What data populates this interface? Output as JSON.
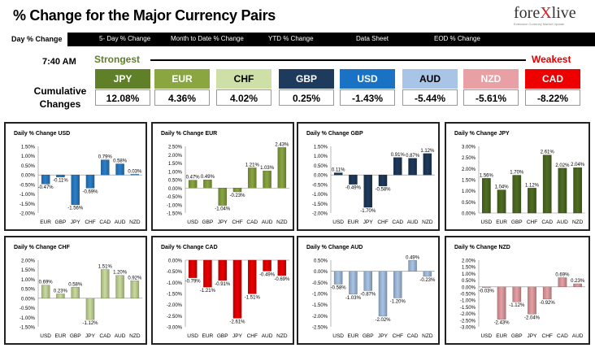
{
  "header": {
    "title": "% Change for the Major Currency Pairs",
    "logo_text": "forexlive",
    "logo_x": "X",
    "logo_tagline": "Extensive Currency Market Update"
  },
  "tabs": [
    {
      "label": "Day % Change",
      "active": true
    },
    {
      "label": "5- Day % Change"
    },
    {
      "label": "Month to Date % Change"
    },
    {
      "label": "YTD % Change"
    },
    {
      "label": "Data Sheet"
    },
    {
      "label": "EOD % Change"
    }
  ],
  "ranking": {
    "time": "7:40 AM",
    "strongest_label": "Strongest",
    "weakest_label": "Weakest",
    "cumulative_label": "Cumulative Changes",
    "currencies": [
      {
        "name": "JPY",
        "value": "12.08%",
        "bg": "#5f7f28",
        "fg": "#ffffff"
      },
      {
        "name": "EUR",
        "value": "4.36%",
        "bg": "#8aa640",
        "fg": "#ffffff"
      },
      {
        "name": "CHF",
        "value": "4.02%",
        "bg": "#cfdfa8",
        "fg": "#000000"
      },
      {
        "name": "GBP",
        "value": "0.25%",
        "bg": "#1e3a5c",
        "fg": "#ffffff"
      },
      {
        "name": "USD",
        "value": "-1.43%",
        "bg": "#1a72c4",
        "fg": "#ffffff"
      },
      {
        "name": "AUD",
        "value": "-5.44%",
        "bg": "#a8c4e6",
        "fg": "#000000"
      },
      {
        "name": "NZD",
        "value": "-5.61%",
        "bg": "#e8a0a4",
        "fg": "#ffffff"
      },
      {
        "name": "CAD",
        "value": "-8.22%",
        "bg": "#ee0000",
        "fg": "#ffffff"
      }
    ]
  },
  "chart_data": [
    {
      "type": "bar",
      "title": "Daily % Change USD",
      "categories": [
        "EUR",
        "GBP",
        "JPY",
        "CHF",
        "CAD",
        "AUD",
        "NZD"
      ],
      "values": [
        -0.47,
        -0.11,
        -1.56,
        -0.69,
        0.79,
        0.58,
        0.03
      ],
      "ylim": [
        -2,
        1.5
      ],
      "yticks": [
        "1.50%",
        "1.00%",
        "0.50%",
        "0.00%",
        "-0.50%",
        "-1.00%",
        "-1.50%",
        "-2.00%"
      ],
      "labels": [
        "-0.47%",
        "-0.11%",
        "-1.56%",
        "-0.69%",
        "0.79%",
        "0.58%",
        "0.03%"
      ],
      "colors": [
        "#2a7fc9",
        "#2a7fc9",
        "#2a7fc9",
        "#2a7fc9",
        "#2a7fc9",
        "#2a7fc9",
        "#2a7fc9"
      ]
    },
    {
      "type": "bar",
      "title": "Daily % Change EUR",
      "categories": [
        "USD",
        "GBP",
        "JPY",
        "CHF",
        "CAD",
        "AUD",
        "NZD"
      ],
      "values": [
        0.47,
        0.49,
        -1.04,
        -0.23,
        1.21,
        1.03,
        2.43
      ],
      "ylim": [
        -1.5,
        2.5
      ],
      "yticks": [
        "2.50%",
        "2.00%",
        "1.50%",
        "1.00%",
        "0.50%",
        "0.00%",
        "-0.50%",
        "-1.00%",
        "-1.50%"
      ],
      "labels": [
        "0.47%",
        "0.49%",
        "-1.04%",
        "-0.23%",
        "1.21%",
        "1.03%",
        "2.43%"
      ],
      "colors": [
        "#8aa640",
        "#8aa640",
        "#8aa640",
        "#8aa640",
        "#8aa640",
        "#8aa640",
        "#8aa640"
      ]
    },
    {
      "type": "bar",
      "title": "Daily % Change GBP",
      "categories": [
        "USD",
        "EUR",
        "JPY",
        "CHF",
        "CAD",
        "AUD",
        "NZD"
      ],
      "values": [
        0.11,
        -0.49,
        -1.7,
        -0.58,
        0.91,
        0.87,
        1.12
      ],
      "ylim": [
        -2,
        1.5
      ],
      "yticks": [
        "1.50%",
        "1.00%",
        "0.50%",
        "0.00%",
        "-0.50%",
        "-1.00%",
        "-1.50%",
        "-2.00%"
      ],
      "labels": [
        "0.11%",
        "-0.49%",
        "-1.70%",
        "-0.58%",
        "0.91%",
        "0.87%",
        "1.12%"
      ],
      "colors": [
        "#1e3a5c",
        "#1e3a5c",
        "#1e3a5c",
        "#1e3a5c",
        "#1e3a5c",
        "#1e3a5c",
        "#1e3a5c"
      ]
    },
    {
      "type": "bar",
      "title": "Daily % Change JPY",
      "categories": [
        "USD",
        "EUR",
        "GBP",
        "CHF",
        "CAD",
        "AUD",
        "NZD"
      ],
      "values": [
        1.56,
        1.04,
        1.7,
        1.12,
        2.61,
        2.02,
        2.04
      ],
      "ylim": [
        0,
        3
      ],
      "yticks": [
        "3.00%",
        "2.50%",
        "2.00%",
        "1.50%",
        "1.00%",
        "0.50%",
        "0.00%"
      ],
      "labels": [
        "1.56%",
        "1.04%",
        "1.70%",
        "1.12%",
        "2.61%",
        "2.02%",
        "2.04%"
      ],
      "colors": [
        "#4f6e22",
        "#4f6e22",
        "#4f6e22",
        "#4f6e22",
        "#4f6e22",
        "#4f6e22",
        "#4f6e22"
      ]
    },
    {
      "type": "bar",
      "title": "Daily % Change CHF",
      "categories": [
        "USD",
        "EUR",
        "GBP",
        "JPY",
        "CAD",
        "AUD",
        "NZD"
      ],
      "values": [
        0.69,
        0.23,
        0.58,
        -1.12,
        1.51,
        1.2,
        0.92
      ],
      "ylim": [
        -1.5,
        2
      ],
      "yticks": [
        "2.00%",
        "1.50%",
        "1.00%",
        "0.50%",
        "0.00%",
        "-0.50%",
        "-1.00%",
        "-1.50%"
      ],
      "labels": [
        "0.69%",
        "0.23%",
        "0.58%",
        "-1.12%",
        "1.51%",
        "1.20%",
        "0.92%"
      ],
      "colors": [
        "#c9dc9c",
        "#c9dc9c",
        "#c9dc9c",
        "#c9dc9c",
        "#c9dc9c",
        "#c9dc9c",
        "#c9dc9c"
      ]
    },
    {
      "type": "bar",
      "title": "Daily % Change CAD",
      "categories": [
        "USD",
        "EUR",
        "GBP",
        "JPY",
        "CHF",
        "AUD",
        "NZD"
      ],
      "values": [
        -0.79,
        -1.21,
        -0.91,
        -2.61,
        -1.51,
        -0.49,
        -0.69
      ],
      "ylim": [
        -3,
        0
      ],
      "yticks": [
        "0.00%",
        "-0.50%",
        "-1.00%",
        "-1.50%",
        "-2.00%",
        "-2.50%",
        "-3.00%"
      ],
      "labels": [
        "-0.79%",
        "-1.21%",
        "-0.91%",
        "-2.61%",
        "-1.51%",
        "-0.49%",
        "-0.69%"
      ],
      "colors": [
        "#ee0000",
        "#ee0000",
        "#ee0000",
        "#ee0000",
        "#ee0000",
        "#ee0000",
        "#ee0000"
      ]
    },
    {
      "type": "bar",
      "title": "Daily % Change AUD",
      "categories": [
        "USD",
        "EUR",
        "GBP",
        "JPY",
        "CHF",
        "CAD",
        "NZD"
      ],
      "values": [
        -0.58,
        -1.03,
        -0.87,
        -2.02,
        -1.2,
        0.49,
        -0.23
      ],
      "ylim": [
        -2.5,
        0.5
      ],
      "yticks": [
        "0.50%",
        "0.00%",
        "-0.50%",
        "-1.00%",
        "-1.50%",
        "-2.00%",
        "-2.50%"
      ],
      "labels": [
        "-0.58%",
        "-1.03%",
        "-0.87%",
        "-2.02%",
        "-1.20%",
        "0.49%",
        "-0.23%"
      ],
      "colors": [
        "#a8c4e6",
        "#a8c4e6",
        "#a8c4e6",
        "#a8c4e6",
        "#a8c4e6",
        "#a8c4e6",
        "#a8c4e6"
      ]
    },
    {
      "type": "bar",
      "title": "Daily % Change NZD",
      "categories": [
        "USD",
        "EUR",
        "GBP",
        "JPY",
        "CHF",
        "CAD",
        "AUD"
      ],
      "values": [
        -0.03,
        -2.43,
        -1.12,
        -2.04,
        -0.92,
        0.69,
        0.23
      ],
      "ylim": [
        -3,
        2
      ],
      "yticks": [
        "2.00%",
        "1.50%",
        "1.00%",
        "0.50%",
        "0.00%",
        "-0.50%",
        "-1.00%",
        "-1.50%",
        "-2.00%",
        "-2.50%",
        "-3.00%"
      ],
      "labels": [
        "-0.03%",
        "-2.43%",
        "-1.12%",
        "-2.04%",
        "-0.92%",
        "0.69%",
        "0.23%"
      ],
      "colors": [
        "#e8a0a4",
        "#e8a0a4",
        "#e8a0a4",
        "#e8a0a4",
        "#e8a0a4",
        "#e8a0a4",
        "#e8a0a4"
      ]
    }
  ]
}
